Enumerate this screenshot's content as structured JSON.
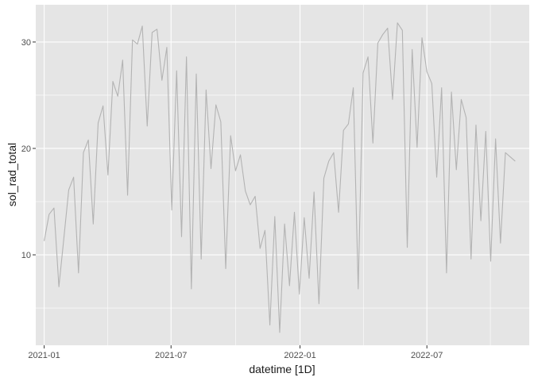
{
  "chart_data": {
    "type": "line",
    "title": "",
    "xlabel": "datetime [1D]",
    "ylabel": "sol_rad_total",
    "x_ticks": [
      "2021-01",
      "2021-07",
      "2022-01",
      "2022-07"
    ],
    "y_ticks": [
      10,
      20,
      30
    ],
    "xlim": [
      "2020-12-20",
      "2022-11-24"
    ],
    "ylim": [
      1.5,
      33.5
    ],
    "grid": true,
    "legend": "none",
    "colors": {
      "panel": "#E5E5E5",
      "grid": "#FFFFFF",
      "line": "#B3B3B3",
      "tick": "#4D4D4D"
    },
    "series": [
      {
        "x": [
          "2021-01-01",
          "2021-01-08",
          "2021-01-15",
          "2021-01-22",
          "2021-01-29",
          "2021-02-05",
          "2021-02-12",
          "2021-02-19",
          "2021-02-26",
          "2021-03-05",
          "2021-03-12",
          "2021-03-19",
          "2021-03-26",
          "2021-04-02",
          "2021-04-09",
          "2021-04-16",
          "2021-04-23",
          "2021-04-30",
          "2021-05-07",
          "2021-05-14",
          "2021-05-21",
          "2021-05-28",
          "2021-06-04",
          "2021-06-11",
          "2021-06-18",
          "2021-06-25",
          "2021-07-02",
          "2021-07-09",
          "2021-07-16",
          "2021-07-23",
          "2021-07-30",
          "2021-08-06",
          "2021-08-13",
          "2021-08-20",
          "2021-08-27",
          "2021-09-03",
          "2021-09-10",
          "2021-09-17",
          "2021-09-24",
          "2021-10-01",
          "2021-10-08",
          "2021-10-15",
          "2021-10-22",
          "2021-10-29",
          "2021-11-05",
          "2021-11-12",
          "2021-11-19",
          "2021-11-26",
          "2021-12-03",
          "2021-12-10",
          "2021-12-17",
          "2021-12-24",
          "2021-12-31",
          "2022-01-07",
          "2022-01-14",
          "2022-01-21",
          "2022-01-28",
          "2022-02-04",
          "2022-02-11",
          "2022-02-18",
          "2022-02-25",
          "2022-03-04",
          "2022-03-11",
          "2022-03-18",
          "2022-03-25",
          "2022-04-01",
          "2022-04-08",
          "2022-04-15",
          "2022-04-22",
          "2022-04-29",
          "2022-05-06",
          "2022-05-13",
          "2022-05-20",
          "2022-05-27",
          "2022-06-03",
          "2022-06-10",
          "2022-06-17",
          "2022-06-24",
          "2022-07-01",
          "2022-07-08",
          "2022-07-15",
          "2022-07-22",
          "2022-07-29",
          "2022-08-05",
          "2022-08-12",
          "2022-08-19",
          "2022-08-26",
          "2022-09-02",
          "2022-09-09",
          "2022-09-16",
          "2022-09-23",
          "2022-09-30",
          "2022-10-07",
          "2022-10-14",
          "2022-10-21",
          "2022-10-28",
          "2022-11-04"
        ],
        "y": [
          11.3,
          13.8,
          14.4,
          7.0,
          11.5,
          16.1,
          17.3,
          8.3,
          19.6,
          20.8,
          12.9,
          22.4,
          24.0,
          17.5,
          26.3,
          24.9,
          28.3,
          15.6,
          30.2,
          29.8,
          31.5,
          22.1,
          30.9,
          31.2,
          26.4,
          29.5,
          14.2,
          27.3,
          11.7,
          28.6,
          6.8,
          27.0,
          9.6,
          25.5,
          18.1,
          24.1,
          22.5,
          8.7,
          21.2,
          17.9,
          19.4,
          16.0,
          14.7,
          15.5,
          10.6,
          12.3,
          3.4,
          13.6,
          2.7,
          12.9,
          7.1,
          14.0,
          6.3,
          13.5,
          7.8,
          15.9,
          5.4,
          17.2,
          18.8,
          19.6,
          14.0,
          21.7,
          22.3,
          25.7,
          6.8,
          27.1,
          28.6,
          20.5,
          29.9,
          30.7,
          31.3,
          24.6,
          31.8,
          31.1,
          10.7,
          29.3,
          20.1,
          30.4,
          27.2,
          26.1,
          17.3,
          25.7,
          8.3,
          25.3,
          18.0,
          24.6,
          22.9,
          9.6,
          22.2,
          13.2,
          21.6,
          9.4,
          20.9,
          11.1,
          19.6,
          19.2,
          18.8
        ]
      }
    ]
  }
}
